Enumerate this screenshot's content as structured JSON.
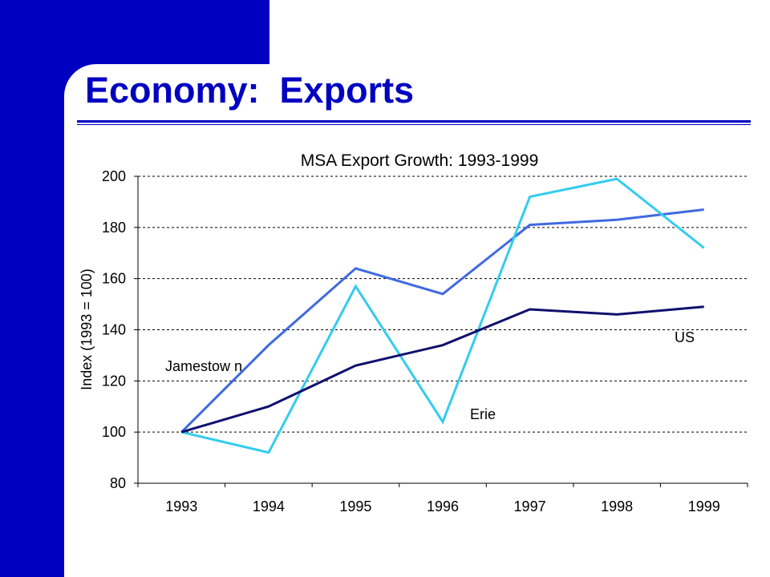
{
  "slide": {
    "title": "Economy:  Exports",
    "accent_color": "#0000c0"
  },
  "chart_data": {
    "type": "line",
    "title": "MSA Export Growth: 1993-1999",
    "xlabel": "",
    "ylabel": "Index (1993 = 100)",
    "categories": [
      "1993",
      "1994",
      "1995",
      "1996",
      "1997",
      "1998",
      "1999"
    ],
    "ylim": [
      80,
      200
    ],
    "yticks": [
      80,
      100,
      120,
      140,
      160,
      180,
      200
    ],
    "grid": "horizontal dashed",
    "legend": "none",
    "series": [
      {
        "name": "Jamestow n",
        "color": "#4169e1",
        "values": [
          100,
          134,
          164,
          154,
          181,
          183,
          187
        ]
      },
      {
        "name": "Erie",
        "color": "#33ccee",
        "values": [
          100,
          92,
          157,
          104,
          192,
          199,
          172
        ]
      },
      {
        "name": "US",
        "color": "#10106e",
        "values": [
          100,
          110,
          126,
          134,
          148,
          146,
          149
        ]
      }
    ]
  }
}
